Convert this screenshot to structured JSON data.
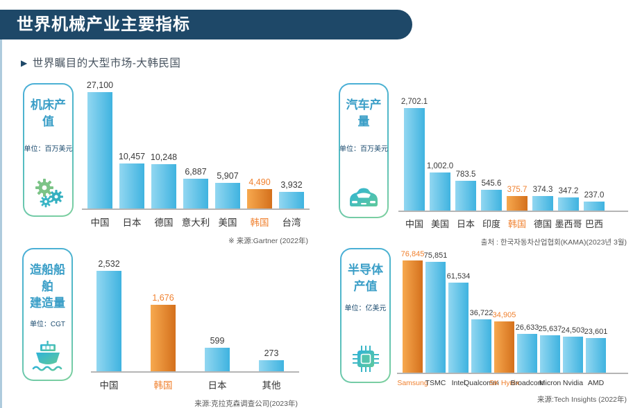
{
  "header": {
    "title": "世界机械产业主要指标"
  },
  "subtitle": {
    "marker": "▶",
    "text": "世界瞩目的大型市场-大韩民国"
  },
  "colors": {
    "header_navy": "#1e4868",
    "bar_blue_light": "#92d7f1",
    "bar_blue_dark": "#3fb3e0",
    "bar_orange_light": "#f7a94f",
    "bar_orange_dark": "#d4701c",
    "highlight_text": "#f0802e",
    "box_border_blue": "#49aed8",
    "box_border_green": "#7ed09e",
    "box_title_teal": "#3a9ec7"
  },
  "chart_data": [
    {
      "type": "bar",
      "title": "机床产值",
      "unit": "单位：百万美元",
      "icon": "gears-icon",
      "source": "※  来源:Gartner (2022年)",
      "categories": [
        "中国",
        "日本",
        "德国",
        "意大利",
        "美国",
        "韩国",
        "台湾"
      ],
      "values": [
        27100,
        10457,
        10248,
        6887,
        5907,
        4490,
        3932
      ],
      "value_labels": [
        "27,100",
        "10,457",
        "10,248",
        "6,887",
        "5,907",
        "4,490",
        "3,932"
      ],
      "highlight_indices": [
        5
      ],
      "ylim": [
        0,
        27100
      ],
      "legend": "none",
      "grid": false
    },
    {
      "type": "bar",
      "title": "汽车产量",
      "unit": "单位：百万美元",
      "icon": "car-icon",
      "source": "출처 : 한국자동차산업협회(KAMA)(2023년 3월)",
      "categories": [
        "中国",
        "美国",
        "日本",
        "印度",
        "韩国",
        "德国",
        "墨西哥",
        "巴西"
      ],
      "values": [
        2702.1,
        1002.0,
        783.5,
        545.6,
        375.7,
        374.3,
        347.2,
        237.0
      ],
      "value_labels": [
        "2,702.1",
        "1,002.0",
        "783.5",
        "545.6",
        "375.7",
        "374.3",
        "347.2",
        "237.0"
      ],
      "highlight_indices": [
        4
      ],
      "ylim": [
        0,
        2702.1
      ],
      "legend": "none",
      "grid": false
    },
    {
      "type": "bar",
      "title": "造船船舶\n建造量",
      "unit": "单位：CGT",
      "icon": "ship-icon",
      "source": "来源:克拉克森调查公司(2023年)",
      "categories": [
        "中国",
        "韩国",
        "日本",
        "其他"
      ],
      "values": [
        2532,
        1676,
        599,
        273
      ],
      "value_labels": [
        "2,532",
        "1,676",
        "599",
        "273"
      ],
      "highlight_indices": [
        1
      ],
      "ylim": [
        0,
        2532
      ],
      "legend": "none",
      "grid": false
    },
    {
      "type": "bar",
      "title": "半导体\n产值",
      "unit": "单位：亿美元",
      "icon": "chip-icon",
      "source": "来源:Tech Insights (2022年)",
      "categories": [
        "Samsung",
        "TSMC",
        "Intel",
        "Qualcomm",
        "SK Hynix",
        "Broadcom",
        "Micron",
        "Nvidia",
        "AMD"
      ],
      "values": [
        76845,
        75851,
        61534,
        36722,
        34905,
        26633,
        25637,
        24503,
        23601
      ],
      "value_labels": [
        "76,845",
        "75,851",
        "61,534",
        "36,722",
        "34,905",
        "26,633",
        "25,637",
        "24,503",
        "23,601"
      ],
      "highlight_indices": [
        0,
        4
      ],
      "ylim": [
        0,
        76845
      ],
      "legend": "none",
      "grid": false
    }
  ]
}
